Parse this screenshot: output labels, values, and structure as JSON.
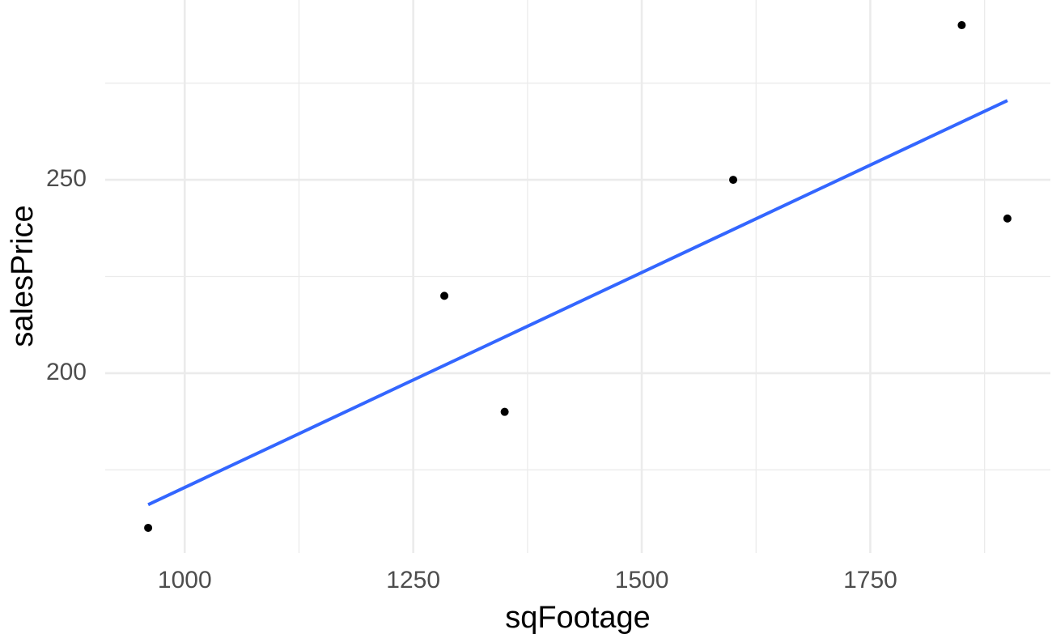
{
  "chart_data": {
    "type": "scatter",
    "x_label": "sqFootage",
    "y_label": "salesPrice",
    "x": [
      960,
      1284,
      1350,
      1600,
      1850,
      1900
    ],
    "values": [
      160,
      220,
      190,
      250,
      290,
      240
    ],
    "color": "#000000",
    "fit_line": {
      "x": [
        960,
        1900
      ],
      "values": [
        166,
        270.5
      ],
      "color": "#3366ff"
    },
    "xlim": [
      913,
      1947
    ],
    "ylim": [
      153.5,
      296.5
    ],
    "xticks": [
      1000,
      1250,
      1500,
      1750
    ],
    "yticks": [
      200,
      250
    ],
    "x_minor_ticks": [
      1125,
      1375,
      1625,
      1875
    ],
    "y_minor_ticks": [
      175,
      225,
      275
    ],
    "grid": true
  }
}
